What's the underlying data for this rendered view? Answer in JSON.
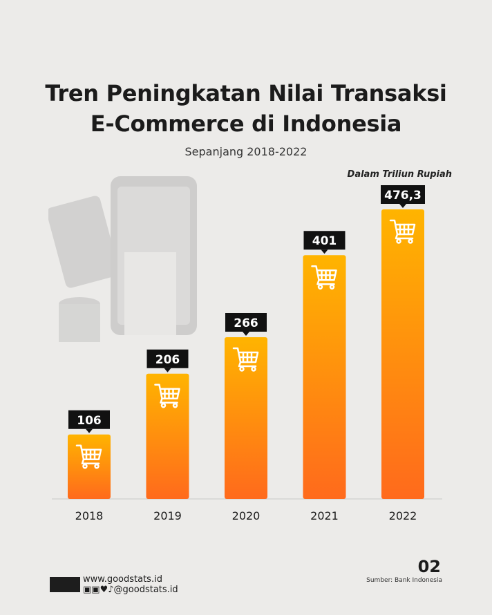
{
  "chart_data": {
    "type": "bar",
    "title": "Tren Peningkatan Nilai Transaksi E-Commerce di Indonesia",
    "title_lines": [
      "Tren Peningkatan Nilai Transaksi",
      "E-Commerce di Indonesia"
    ],
    "subtitle": "Sepanjang 2018-2022",
    "unit_note": "Dalam Triliun Rupiah",
    "categories": [
      "2018",
      "2019",
      "2020",
      "2021",
      "2022"
    ],
    "values": [
      106,
      206,
      266,
      401,
      476.3
    ],
    "value_labels": [
      "106",
      "206",
      "266",
      "401",
      "476,3"
    ],
    "ylim": [
      0,
      476.3
    ],
    "grid": false,
    "bar_gradient": [
      "#ffb400",
      "#ff6a1c"
    ],
    "label_bg": "#111111",
    "bar_icon": "shopping-cart-icon"
  },
  "footer": {
    "site": "www.goodstats.id",
    "social_handle": "@goodstats.id",
    "social_icons": [
      "instagram-icon",
      "facebook-icon",
      "twitter-icon",
      "tiktok-icon"
    ],
    "page_number": "02",
    "source": "Sumber: Bank Indonesia"
  }
}
